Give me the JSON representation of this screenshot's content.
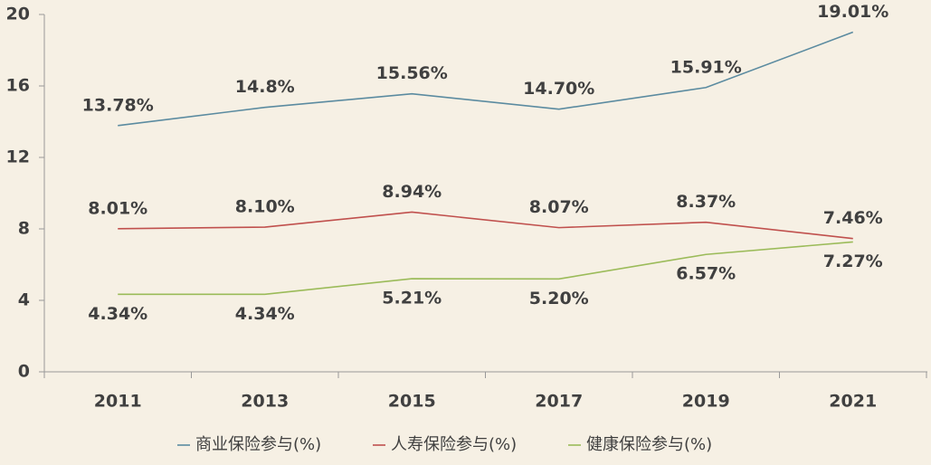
{
  "chart_data": {
    "type": "line",
    "categories": [
      "2011",
      "2013",
      "2015",
      "2017",
      "2019",
      "2021"
    ],
    "ylim": [
      0,
      20
    ],
    "yticks": [
      0,
      4,
      8,
      12,
      16,
      20
    ],
    "series": [
      {
        "name": "商业保险参与(%)",
        "color": "#5b8ba0",
        "values": [
          13.78,
          14.8,
          15.56,
          14.7,
          15.91,
          19.01
        ],
        "value_labels": [
          "13.78%",
          "14.8%",
          "15.56%",
          "14.70%",
          "15.91%",
          "19.01%"
        ]
      },
      {
        "name": "人寿保险参与(%)",
        "color": "#c0504d",
        "values": [
          8.01,
          8.1,
          8.94,
          8.07,
          8.37,
          7.46
        ],
        "value_labels": [
          "8.01%",
          "8.10%",
          "8.94%",
          "8.07%",
          "8.37%",
          "7.46%"
        ]
      },
      {
        "name": "健康保险参与(%)",
        "color": "#9bbb59",
        "values": [
          4.34,
          4.34,
          5.21,
          5.2,
          6.57,
          7.27
        ],
        "value_labels": [
          "4.34%",
          "4.34%",
          "5.21%",
          "5.20%",
          "6.57%",
          "7.27%"
        ]
      }
    ],
    "legend": "bottom"
  }
}
